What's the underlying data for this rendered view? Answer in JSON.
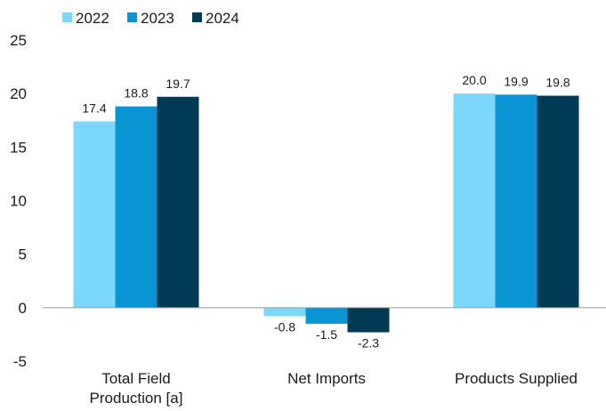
{
  "chart_data": {
    "type": "bar",
    "categories": [
      [
        "Total Field",
        "Production [a]"
      ],
      [
        "Net Imports"
      ],
      [
        "Products Supplied"
      ]
    ],
    "series": [
      {
        "name": "2022",
        "color": "#7dd6fb",
        "values": [
          17.4,
          -0.8,
          20.0
        ]
      },
      {
        "name": "2023",
        "color": "#0995d3",
        "values": [
          18.8,
          -1.5,
          19.9
        ]
      },
      {
        "name": "2024",
        "color": "#003a55",
        "values": [
          19.7,
          -2.3,
          19.8
        ]
      }
    ],
    "data_labels": [
      [
        "17.4",
        "-0.8",
        "20.0"
      ],
      [
        "18.8",
        "-1.5",
        "19.9"
      ],
      [
        "19.7",
        "-2.3",
        "19.8"
      ]
    ],
    "y_ticks": [
      "25",
      "20",
      "15",
      "10",
      "5",
      "0",
      "-5"
    ],
    "y_tick_values": [
      25,
      20,
      15,
      10,
      5,
      0,
      -5
    ],
    "ylim": [
      -5,
      25
    ],
    "grid": false,
    "legend_position": "top-left"
  }
}
